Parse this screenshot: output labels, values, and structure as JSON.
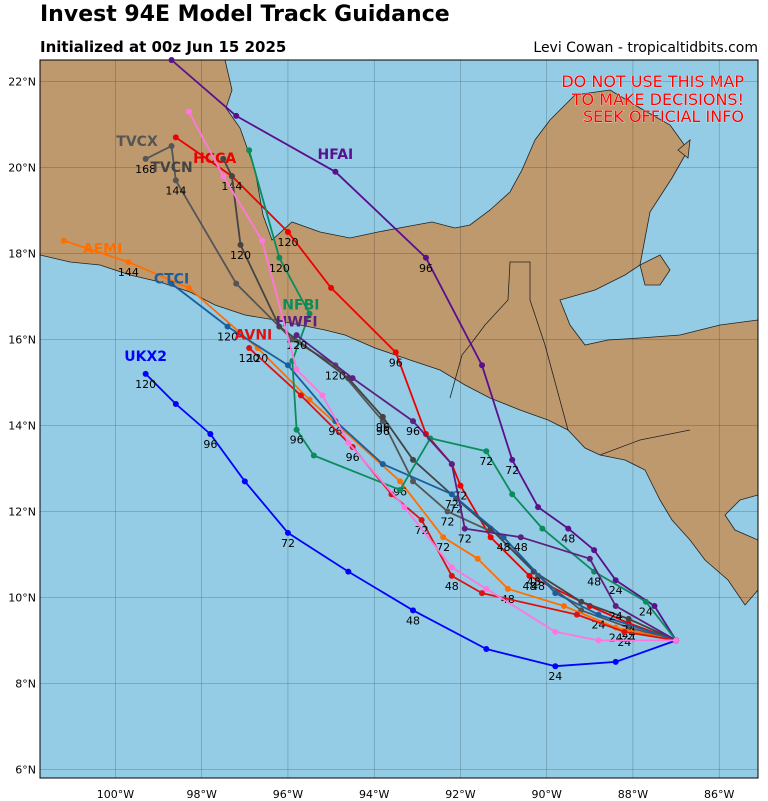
{
  "header": {
    "title": "Invest 94E Model Track Guidance",
    "subtitle": "Initialized at 00z Jun 15 2025",
    "credit": "Levi Cowan - tropicaltidbits.com"
  },
  "warning": [
    "DO NOT USE THIS MAP",
    "TO MAKE DECISIONS!",
    "SEEK OFFICIAL INFO"
  ],
  "map": {
    "lon_range": [
      -101.75,
      -85.1
    ],
    "lat_range": [
      5.8,
      22.5
    ],
    "lon_ticks": [
      -100,
      -98,
      -96,
      -94,
      -92,
      -90,
      -88,
      -86
    ],
    "lat_ticks": [
      6,
      8,
      10,
      12,
      14,
      16,
      18,
      20,
      22
    ],
    "lon_tick_labels": [
      "100°W",
      "98°W",
      "96°W",
      "94°W",
      "92°W",
      "90°W",
      "88°W",
      "86°W"
    ],
    "lat_tick_labels": [
      "6°N",
      "8°N",
      "10°N",
      "12°N",
      "14°N",
      "16°N",
      "18°N",
      "20°N",
      "22°N"
    ],
    "ocean_color": "#94cce5",
    "land_color": "#be996e",
    "grid": true
  },
  "tracks": [
    {
      "name": "UKX2",
      "color": "#0000ff",
      "label_pos": [
        -99.3,
        15.5
      ],
      "points": [
        [
          -87.0,
          9.0
        ],
        [
          -88.4,
          8.5
        ],
        [
          -89.8,
          8.4
        ],
        [
          -91.4,
          8.8
        ],
        [
          -93.1,
          9.7
        ],
        [
          -94.6,
          10.6
        ],
        [
          -96.0,
          11.5
        ],
        [
          -97.0,
          12.7
        ],
        [
          -97.8,
          13.8
        ],
        [
          -98.6,
          14.5
        ],
        [
          -99.3,
          15.2
        ]
      ],
      "hour_labels": [
        {
          "t": "24",
          "at": [
            -89.8,
            8.4
          ]
        },
        {
          "t": "48",
          "at": [
            -93.1,
            9.7
          ]
        },
        {
          "t": "72",
          "at": [
            -96.0,
            11.5
          ]
        },
        {
          "t": "96",
          "at": [
            -97.8,
            13.8
          ]
        },
        {
          "t": "120",
          "at": [
            -99.3,
            15.2
          ]
        }
      ]
    },
    {
      "name": "HFAI",
      "color": "#5a0f8c",
      "label_pos": [
        -94.9,
        20.2
      ],
      "points": [
        [
          -87.0,
          9.0
        ],
        [
          -87.5,
          9.8
        ],
        [
          -88.4,
          10.4
        ],
        [
          -88.9,
          11.1
        ],
        [
          -89.5,
          11.6
        ],
        [
          -90.2,
          12.1
        ],
        [
          -90.8,
          13.2
        ],
        [
          -91.5,
          15.4
        ],
        [
          -92.8,
          17.9
        ],
        [
          -94.9,
          19.9
        ],
        [
          -97.2,
          21.2
        ],
        [
          -98.7,
          22.5
        ]
      ],
      "hour_labels": [
        {
          "t": "24",
          "at": [
            -88.4,
            10.4
          ]
        },
        {
          "t": "48",
          "at": [
            -89.5,
            11.6
          ]
        },
        {
          "t": "72",
          "at": [
            -90.8,
            13.2
          ]
        },
        {
          "t": "96",
          "at": [
            -92.8,
            17.9
          ]
        }
      ]
    },
    {
      "name": "HCCA",
      "color": "#ee0000",
      "label_pos": [
        -97.7,
        20.1
      ],
      "points": [
        [
          -87.0,
          9.0
        ],
        [
          -88.1,
          9.4
        ],
        [
          -89.0,
          9.8
        ],
        [
          -90.4,
          10.5
        ],
        [
          -91.3,
          11.4
        ],
        [
          -92.0,
          12.6
        ],
        [
          -92.2,
          13.1
        ],
        [
          -92.8,
          13.8
        ],
        [
          -93.5,
          15.7
        ],
        [
          -95.0,
          17.2
        ],
        [
          -96.0,
          18.5
        ],
        [
          -97.3,
          19.8
        ],
        [
          -98.6,
          20.7
        ]
      ],
      "hour_labels": [
        {
          "t": "24",
          "at": [
            -88.1,
            9.4
          ]
        },
        {
          "t": "48",
          "at": [
            -90.4,
            10.5
          ]
        },
        {
          "t": "72",
          "at": [
            -92.0,
            12.6
          ]
        },
        {
          "t": "96",
          "at": [
            -93.5,
            15.7
          ]
        },
        {
          "t": "120",
          "at": [
            -96.0,
            18.5
          ]
        },
        {
          "t": "144",
          "at": [
            -97.3,
            19.8
          ]
        }
      ]
    },
    {
      "name": "TVCX",
      "color": "#555555",
      "label_pos": [
        -99.5,
        20.5
      ],
      "points": [
        [
          -87.0,
          9.0
        ],
        [
          -88.1,
          9.3
        ],
        [
          -89.2,
          9.7
        ],
        [
          -90.2,
          10.5
        ],
        [
          -91.0,
          11.4
        ],
        [
          -92.3,
          12.0
        ],
        [
          -93.1,
          12.7
        ],
        [
          -93.8,
          14.1
        ],
        [
          -94.9,
          15.4
        ],
        [
          -95.9,
          16.0
        ],
        [
          -97.2,
          17.3
        ],
        [
          -98.6,
          19.7
        ],
        [
          -98.7,
          20.5
        ],
        [
          -99.3,
          20.2
        ]
      ],
      "hour_labels": [
        {
          "t": "24",
          "at": [
            -88.1,
            9.3
          ]
        },
        {
          "t": "48",
          "at": [
            -90.2,
            10.5
          ]
        },
        {
          "t": "72",
          "at": [
            -92.3,
            12.0
          ]
        },
        {
          "t": "96",
          "at": [
            -93.8,
            14.1
          ]
        },
        {
          "t": "120",
          "at": [
            -94.9,
            15.4
          ]
        },
        {
          "t": "144",
          "at": [
            -98.6,
            19.7
          ]
        },
        {
          "t": "168",
          "at": [
            -99.3,
            20.2
          ]
        }
      ]
    },
    {
      "name": "TVCN",
      "color": "#444444",
      "label_pos": [
        -98.7,
        19.9
      ],
      "points": [
        [
          -87.0,
          9.0
        ],
        [
          -88.1,
          9.5
        ],
        [
          -89.2,
          9.9
        ],
        [
          -90.3,
          10.6
        ],
        [
          -91.3,
          11.6
        ],
        [
          -92.1,
          12.3
        ],
        [
          -93.1,
          13.2
        ],
        [
          -93.8,
          14.2
        ],
        [
          -94.6,
          15.1
        ],
        [
          -96.2,
          16.3
        ],
        [
          -97.1,
          18.2
        ],
        [
          -97.3,
          19.8
        ],
        [
          -97.5,
          20.2
        ]
      ],
      "hour_labels": [
        {
          "t": "24",
          "at": [
            -88.1,
            9.5
          ]
        },
        {
          "t": "48",
          "at": [
            -90.3,
            10.6
          ]
        },
        {
          "t": "72",
          "at": [
            -92.1,
            12.3
          ]
        },
        {
          "t": "96",
          "at": [
            -93.8,
            14.2
          ]
        },
        {
          "t": "120",
          "at": [
            -97.1,
            18.2
          ]
        }
      ]
    },
    {
      "name": "AEMI",
      "color": "#ff6f00",
      "label_pos": [
        -100.3,
        18.0
      ],
      "points": [
        [
          -87.0,
          9.0
        ],
        [
          -88.4,
          9.3
        ],
        [
          -89.6,
          9.8
        ],
        [
          -90.9,
          10.2
        ],
        [
          -91.6,
          10.9
        ],
        [
          -92.4,
          11.4
        ],
        [
          -93.4,
          12.7
        ],
        [
          -95.5,
          14.6
        ],
        [
          -96.7,
          15.8
        ],
        [
          -98.3,
          17.2
        ],
        [
          -99.7,
          17.8
        ],
        [
          -101.2,
          18.3
        ]
      ],
      "hour_labels": [
        {
          "t": "24",
          "at": [
            -88.4,
            9.3
          ]
        },
        {
          "t": "48",
          "at": [
            -90.9,
            10.2
          ]
        },
        {
          "t": "72",
          "at": [
            -92.4,
            11.4
          ]
        },
        {
          "t": "96",
          "at": [
            -93.4,
            12.7
          ]
        },
        {
          "t": "120",
          "at": [
            -96.7,
            15.8
          ]
        },
        {
          "t": "144",
          "at": [
            -99.7,
            17.8
          ]
        }
      ]
    },
    {
      "name": "CTCI",
      "color": "#1a5e9e",
      "label_pos": [
        -98.7,
        17.3
      ],
      "points": [
        [
          -87.0,
          9.0
        ],
        [
          -88.8,
          9.6
        ],
        [
          -89.8,
          10.1
        ],
        [
          -91.0,
          11.4
        ],
        [
          -92.2,
          12.4
        ],
        [
          -93.8,
          13.1
        ],
        [
          -94.9,
          14.1
        ],
        [
          -96.0,
          15.4
        ],
        [
          -97.4,
          16.3
        ],
        [
          -98.7,
          17.3
        ]
      ],
      "hour_labels": [
        {
          "t": "24",
          "at": [
            -88.8,
            9.6
          ]
        },
        {
          "t": "48",
          "at": [
            -91.0,
            11.4
          ]
        },
        {
          "t": "72",
          "at": [
            -92.2,
            12.4
          ]
        },
        {
          "t": "96",
          "at": [
            -94.9,
            14.1
          ]
        },
        {
          "t": "120",
          "at": [
            -97.4,
            16.3
          ]
        }
      ]
    },
    {
      "name": "AVNI",
      "color": "#dd1111",
      "label_pos": [
        -96.8,
        16.0
      ],
      "points": [
        [
          -87.0,
          9.0
        ],
        [
          -88.2,
          9.2
        ],
        [
          -89.3,
          9.6
        ],
        [
          -91.5,
          10.1
        ],
        [
          -92.2,
          10.5
        ],
        [
          -92.9,
          11.8
        ],
        [
          -93.6,
          12.4
        ],
        [
          -94.5,
          13.5
        ],
        [
          -95.7,
          14.7
        ],
        [
          -96.9,
          15.8
        ]
      ],
      "hour_labels": [
        {
          "t": "24",
          "at": [
            -88.2,
            9.2
          ]
        },
        {
          "t": "48",
          "at": [
            -92.2,
            10.5
          ]
        },
        {
          "t": "72",
          "at": [
            -92.9,
            11.8
          ]
        },
        {
          "t": "96",
          "at": [
            -94.5,
            13.5
          ]
        },
        {
          "t": "120",
          "at": [
            -96.9,
            15.8
          ]
        }
      ]
    },
    {
      "name": "NFBI",
      "color": "#0b8c5a",
      "label_pos": [
        -95.7,
        16.7
      ],
      "points": [
        [
          -87.0,
          9.0
        ],
        [
          -87.7,
          9.9
        ],
        [
          -88.9,
          10.6
        ],
        [
          -90.1,
          11.6
        ],
        [
          -90.8,
          12.4
        ],
        [
          -91.4,
          13.4
        ],
        [
          -92.7,
          13.7
        ],
        [
          -93.4,
          12.5
        ],
        [
          -95.4,
          13.3
        ],
        [
          -95.8,
          13.9
        ],
        [
          -95.9,
          15.5
        ],
        [
          -95.5,
          16.6
        ],
        [
          -96.2,
          17.9
        ],
        [
          -96.9,
          20.4
        ]
      ],
      "hour_labels": [
        {
          "t": "24",
          "at": [
            -87.7,
            9.9
          ]
        },
        {
          "t": "48",
          "at": [
            -88.9,
            10.6
          ]
        },
        {
          "t": "72",
          "at": [
            -91.4,
            13.4
          ]
        },
        {
          "t": "96",
          "at": [
            -95.8,
            13.9
          ]
        },
        {
          "t": "120",
          "at": [
            -96.2,
            17.9
          ]
        }
      ]
    },
    {
      "name": "HWFI",
      "color": "#5d1f80",
      "label_pos": [
        -95.8,
        16.3
      ],
      "points": [
        [
          -87.0,
          9.0
        ],
        [
          -88.4,
          9.8
        ],
        [
          -89.0,
          10.9
        ],
        [
          -90.6,
          11.4
        ],
        [
          -91.9,
          11.6
        ],
        [
          -92.2,
          13.1
        ],
        [
          -93.1,
          14.1
        ],
        [
          -94.5,
          15.1
        ],
        [
          -95.8,
          16.1
        ]
      ],
      "hour_labels": [
        {
          "t": "24",
          "at": [
            -88.4,
            9.8
          ]
        },
        {
          "t": "48",
          "at": [
            -90.6,
            11.4
          ]
        },
        {
          "t": "72",
          "at": [
            -91.9,
            11.6
          ]
        },
        {
          "t": "96",
          "at": [
            -93.1,
            14.1
          ]
        },
        {
          "t": "120",
          "at": [
            -95.8,
            16.1
          ]
        }
      ]
    },
    {
      "name": "",
      "color": "#ff77dd",
      "label_pos": null,
      "points": [
        [
          -87.0,
          9.0
        ],
        [
          -88.8,
          9.0
        ],
        [
          -89.8,
          9.2
        ],
        [
          -91.4,
          10.2
        ],
        [
          -92.2,
          10.7
        ],
        [
          -93.3,
          12.1
        ],
        [
          -94.6,
          13.6
        ],
        [
          -95.2,
          14.7
        ],
        [
          -95.8,
          15.3
        ],
        [
          -96.6,
          18.3
        ],
        [
          -97.5,
          19.8
        ],
        [
          -98.3,
          21.3
        ]
      ],
      "hour_labels": []
    }
  ]
}
